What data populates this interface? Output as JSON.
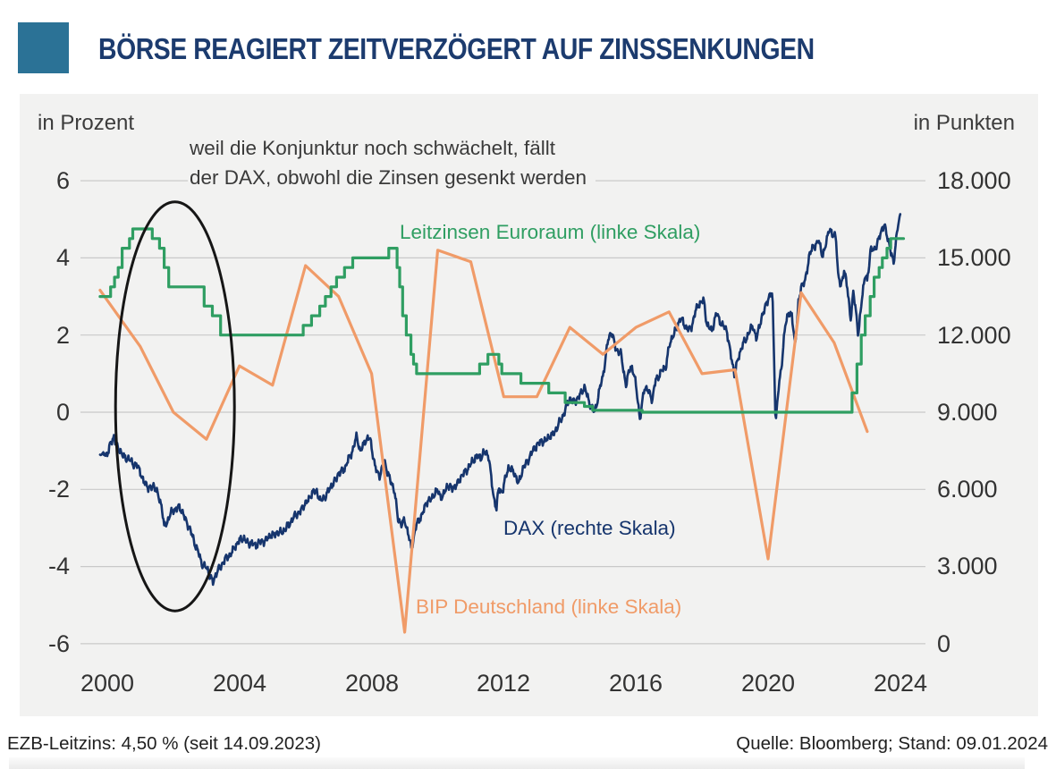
{
  "header": {
    "title": "BÖRSE REAGIERT ZEITVERZÖGERT AUF ZINSSENKUNGEN"
  },
  "theme": {
    "accent": "#2b7296",
    "title_color": "#1c3b6e",
    "card_bg": "#f2f2f1",
    "grid_color": "#c9c9c9",
    "text_color": "#3a3a3a",
    "ellipse_color": "#161616"
  },
  "footer": {
    "left": "EZB-Leitzins: 4,50 % (seit 14.09.2023)",
    "right": "Quelle: Bloomberg; Stand: 09.01.2024"
  },
  "chart_data": {
    "type": "line",
    "title": "BÖRSE REAGIERT ZEITVERZÖGERT AUF ZINSSENKUNGEN",
    "annotation_line1": "weil die Konjunktur noch schwächelt, fällt",
    "annotation_line2": "der DAX, obwohl die Zinsen gesenkt werden",
    "x_ticks": [
      "2000",
      "2004",
      "2008",
      "2012",
      "2016",
      "2020",
      "2024"
    ],
    "x_tick_values": [
      2000,
      2004,
      2008,
      2012,
      2016,
      2020,
      2024
    ],
    "x_range": [
      1999.78,
      2024.1
    ],
    "grid": true,
    "left_axis": {
      "title": "in Prozent",
      "tick_labels": [
        "6",
        "4",
        "2",
        "0",
        "-2",
        "-4",
        "-6"
      ],
      "tick_values": [
        6,
        4,
        2,
        0,
        -2,
        -4,
        -6
      ],
      "range": [
        -6,
        6
      ]
    },
    "right_axis": {
      "title": "in Punkten",
      "tick_labels": [
        "18.000",
        "15.000",
        "12.000",
        "9.000",
        "6.000",
        "3.000",
        "0"
      ],
      "tick_values": [
        18000,
        15000,
        12000,
        9000,
        6000,
        3000,
        0
      ],
      "range": [
        0,
        18000
      ]
    },
    "ellipse_annotation": {
      "cx_year": 2002.05,
      "cy_value": 0.15,
      "rx_years": 1.8,
      "ry_units": 5.3
    },
    "series": [
      {
        "id": "leitzins",
        "name": "Leitzinsen Euroraum (linke Skala)",
        "axis": "left",
        "style": "step",
        "color": "#2f9e62",
        "unit": "percent",
        "points": [
          [
            2000.0,
            3.0
          ],
          [
            2000.1,
            3.25
          ],
          [
            2000.22,
            3.5
          ],
          [
            2000.33,
            3.75
          ],
          [
            2000.45,
            4.25
          ],
          [
            2000.67,
            4.5
          ],
          [
            2000.77,
            4.75
          ],
          [
            2001.36,
            4.5
          ],
          [
            2001.58,
            4.25
          ],
          [
            2001.72,
            3.75
          ],
          [
            2001.86,
            3.25
          ],
          [
            2002.93,
            2.75
          ],
          [
            2003.18,
            2.5
          ],
          [
            2003.43,
            2.0
          ],
          [
            2005.93,
            2.25
          ],
          [
            2006.18,
            2.5
          ],
          [
            2006.43,
            2.75
          ],
          [
            2006.6,
            3.0
          ],
          [
            2006.77,
            3.25
          ],
          [
            2006.94,
            3.5
          ],
          [
            2007.18,
            3.75
          ],
          [
            2007.43,
            4.0
          ],
          [
            2008.52,
            4.25
          ],
          [
            2008.77,
            3.75
          ],
          [
            2008.85,
            3.25
          ],
          [
            2008.94,
            2.5
          ],
          [
            2009.05,
            2.0
          ],
          [
            2009.19,
            1.5
          ],
          [
            2009.27,
            1.25
          ],
          [
            2009.36,
            1.0
          ],
          [
            2011.27,
            1.25
          ],
          [
            2011.52,
            1.5
          ],
          [
            2011.85,
            1.25
          ],
          [
            2011.94,
            1.0
          ],
          [
            2012.52,
            0.75
          ],
          [
            2013.36,
            0.5
          ],
          [
            2013.86,
            0.25
          ],
          [
            2014.44,
            0.15
          ],
          [
            2014.69,
            0.05
          ],
          [
            2016.19,
            0.0
          ],
          [
            2022.54,
            0.5
          ],
          [
            2022.69,
            1.25
          ],
          [
            2022.82,
            2.0
          ],
          [
            2022.94,
            2.5
          ],
          [
            2023.09,
            3.0
          ],
          [
            2023.21,
            3.5
          ],
          [
            2023.36,
            3.75
          ],
          [
            2023.46,
            4.0
          ],
          [
            2023.6,
            4.25
          ],
          [
            2023.71,
            4.5
          ]
        ]
      },
      {
        "id": "bip",
        "name": "BIP Deutschland (linke Skala)",
        "axis": "left",
        "style": "line",
        "color": "#f09b68",
        "unit": "percent",
        "points": [
          [
            2000,
            2.9
          ],
          [
            2001,
            1.7
          ],
          [
            2002,
            0.0
          ],
          [
            2003,
            -0.7
          ],
          [
            2004,
            1.2
          ],
          [
            2005,
            0.7
          ],
          [
            2006,
            3.8
          ],
          [
            2007,
            3.0
          ],
          [
            2008,
            1.0
          ],
          [
            2009,
            -5.7
          ],
          [
            2010,
            4.2
          ],
          [
            2011,
            3.9
          ],
          [
            2012,
            0.4
          ],
          [
            2013,
            0.4
          ],
          [
            2014,
            2.2
          ],
          [
            2015,
            1.5
          ],
          [
            2016,
            2.2
          ],
          [
            2017,
            2.6
          ],
          [
            2018,
            1.0
          ],
          [
            2019,
            1.1
          ],
          [
            2020,
            -3.8
          ],
          [
            2021,
            3.1
          ],
          [
            2022,
            1.8
          ],
          [
            2023,
            -0.5
          ]
        ]
      },
      {
        "id": "dax",
        "name": "DAX (rechte Skala)",
        "axis": "right",
        "style": "noisy-line",
        "color": "#16356d",
        "unit": "points",
        "points": [
          [
            1999.85,
            7350
          ],
          [
            2000.0,
            7400
          ],
          [
            2000.1,
            7750
          ],
          [
            2000.2,
            8060
          ],
          [
            2000.3,
            7650
          ],
          [
            2000.45,
            7350
          ],
          [
            2000.6,
            7200
          ],
          [
            2000.75,
            7050
          ],
          [
            2000.9,
            6900
          ],
          [
            2001.0,
            6700
          ],
          [
            2001.1,
            6300
          ],
          [
            2001.25,
            6050
          ],
          [
            2001.4,
            6150
          ],
          [
            2001.55,
            5750
          ],
          [
            2001.65,
            5350
          ],
          [
            2001.72,
            4500
          ],
          [
            2001.8,
            4700
          ],
          [
            2001.9,
            5050
          ],
          [
            2002.0,
            5150
          ],
          [
            2002.15,
            5350
          ],
          [
            2002.3,
            5050
          ],
          [
            2002.45,
            4600
          ],
          [
            2002.6,
            4100
          ],
          [
            2002.75,
            3550
          ],
          [
            2002.85,
            3150
          ],
          [
            2003.0,
            2950
          ],
          [
            2003.1,
            2650
          ],
          [
            2003.2,
            2420
          ],
          [
            2003.35,
            2850
          ],
          [
            2003.5,
            3150
          ],
          [
            2003.65,
            3400
          ],
          [
            2003.8,
            3600
          ],
          [
            2004.0,
            4050
          ],
          [
            2004.15,
            4050
          ],
          [
            2004.3,
            3900
          ],
          [
            2004.5,
            3850
          ],
          [
            2004.65,
            3950
          ],
          [
            2004.8,
            4050
          ],
          [
            2005.0,
            4250
          ],
          [
            2005.2,
            4300
          ],
          [
            2005.4,
            4450
          ],
          [
            2005.6,
            4850
          ],
          [
            2005.8,
            5100
          ],
          [
            2006.0,
            5450
          ],
          [
            2006.2,
            5850
          ],
          [
            2006.35,
            5950
          ],
          [
            2006.45,
            5500
          ],
          [
            2006.6,
            5750
          ],
          [
            2006.8,
            6150
          ],
          [
            2007.0,
            6600
          ],
          [
            2007.2,
            6850
          ],
          [
            2007.4,
            7450
          ],
          [
            2007.55,
            8050
          ],
          [
            2007.65,
            7500
          ],
          [
            2007.8,
            7850
          ],
          [
            2007.95,
            8050
          ],
          [
            2008.1,
            6850
          ],
          [
            2008.25,
            6550
          ],
          [
            2008.4,
            7050
          ],
          [
            2008.55,
            6400
          ],
          [
            2008.7,
            5900
          ],
          [
            2008.8,
            4850
          ],
          [
            2008.9,
            4600
          ],
          [
            2009.0,
            4850
          ],
          [
            2009.1,
            4300
          ],
          [
            2009.2,
            3700
          ],
          [
            2009.35,
            4600
          ],
          [
            2009.5,
            4950
          ],
          [
            2009.65,
            5450
          ],
          [
            2009.8,
            5650
          ],
          [
            2010.0,
            5950
          ],
          [
            2010.15,
            5650
          ],
          [
            2010.3,
            6200
          ],
          [
            2010.45,
            6000
          ],
          [
            2010.6,
            6250
          ],
          [
            2010.8,
            6650
          ],
          [
            2011.0,
            6950
          ],
          [
            2011.15,
            7300
          ],
          [
            2011.3,
            7200
          ],
          [
            2011.4,
            7500
          ],
          [
            2011.55,
            7250
          ],
          [
            2011.62,
            6450
          ],
          [
            2011.7,
            5650
          ],
          [
            2011.78,
            5250
          ],
          [
            2011.85,
            6050
          ],
          [
            2011.95,
            5900
          ],
          [
            2012.0,
            6150
          ],
          [
            2012.15,
            6900
          ],
          [
            2012.3,
            6650
          ],
          [
            2012.45,
            6250
          ],
          [
            2012.6,
            6850
          ],
          [
            2012.8,
            7300
          ],
          [
            2013.0,
            7750
          ],
          [
            2013.15,
            7850
          ],
          [
            2013.3,
            7950
          ],
          [
            2013.45,
            8100
          ],
          [
            2013.6,
            8350
          ],
          [
            2013.8,
            8900
          ],
          [
            2014.0,
            9550
          ],
          [
            2014.15,
            9350
          ],
          [
            2014.3,
            9700
          ],
          [
            2014.45,
            9950
          ],
          [
            2014.6,
            9350
          ],
          [
            2014.75,
            8950
          ],
          [
            2014.9,
            9900
          ],
          [
            2015.0,
            10350
          ],
          [
            2015.15,
            11800
          ],
          [
            2015.27,
            12100
          ],
          [
            2015.4,
            11450
          ],
          [
            2015.55,
            11250
          ],
          [
            2015.7,
            10050
          ],
          [
            2015.85,
            10850
          ],
          [
            2015.95,
            10450
          ],
          [
            2016.05,
            9550
          ],
          [
            2016.12,
            8700
          ],
          [
            2016.25,
            9950
          ],
          [
            2016.4,
            9800
          ],
          [
            2016.5,
            9500
          ],
          [
            2016.6,
            10250
          ],
          [
            2016.75,
            10550
          ],
          [
            2016.9,
            10750
          ],
          [
            2017.0,
            11550
          ],
          [
            2017.15,
            12050
          ],
          [
            2017.35,
            12650
          ],
          [
            2017.5,
            12350
          ],
          [
            2017.65,
            12150
          ],
          [
            2017.8,
            12950
          ],
          [
            2017.95,
            13250
          ],
          [
            2018.05,
            13400
          ],
          [
            2018.15,
            12350
          ],
          [
            2018.3,
            12200
          ],
          [
            2018.45,
            12850
          ],
          [
            2018.6,
            12400
          ],
          [
            2018.75,
            12200
          ],
          [
            2018.85,
            11400
          ],
          [
            2018.98,
            10450
          ],
          [
            2019.1,
            11150
          ],
          [
            2019.25,
            11650
          ],
          [
            2019.4,
            12050
          ],
          [
            2019.55,
            12350
          ],
          [
            2019.65,
            11850
          ],
          [
            2019.8,
            12650
          ],
          [
            2019.95,
            13250
          ],
          [
            2020.05,
            13500
          ],
          [
            2020.13,
            13700
          ],
          [
            2020.18,
            11200
          ],
          [
            2020.23,
            8500
          ],
          [
            2020.32,
            9950
          ],
          [
            2020.42,
            11000
          ],
          [
            2020.52,
            12350
          ],
          [
            2020.62,
            12900
          ],
          [
            2020.72,
            12750
          ],
          [
            2020.82,
            11600
          ],
          [
            2020.92,
            13250
          ],
          [
            2021.0,
            13900
          ],
          [
            2021.12,
            14050
          ],
          [
            2021.25,
            15150
          ],
          [
            2021.4,
            15450
          ],
          [
            2021.52,
            15700
          ],
          [
            2021.65,
            15050
          ],
          [
            2021.75,
            15550
          ],
          [
            2021.85,
            16150
          ],
          [
            2021.95,
            15850
          ],
          [
            2022.05,
            15950
          ],
          [
            2022.12,
            14250
          ],
          [
            2022.2,
            13900
          ],
          [
            2022.3,
            14550
          ],
          [
            2022.4,
            13800
          ],
          [
            2022.5,
            12650
          ],
          [
            2022.58,
            13650
          ],
          [
            2022.65,
            13050
          ],
          [
            2022.73,
            11950
          ],
          [
            2022.85,
            13600
          ],
          [
            2022.95,
            14350
          ],
          [
            2023.0,
            14050
          ],
          [
            2023.1,
            15350
          ],
          [
            2023.22,
            15250
          ],
          [
            2023.32,
            15700
          ],
          [
            2023.42,
            15950
          ],
          [
            2023.52,
            16350
          ],
          [
            2023.6,
            15850
          ],
          [
            2023.7,
            15350
          ],
          [
            2023.8,
            14750
          ],
          [
            2023.9,
            16050
          ],
          [
            2024.0,
            16700
          ]
        ]
      }
    ]
  }
}
